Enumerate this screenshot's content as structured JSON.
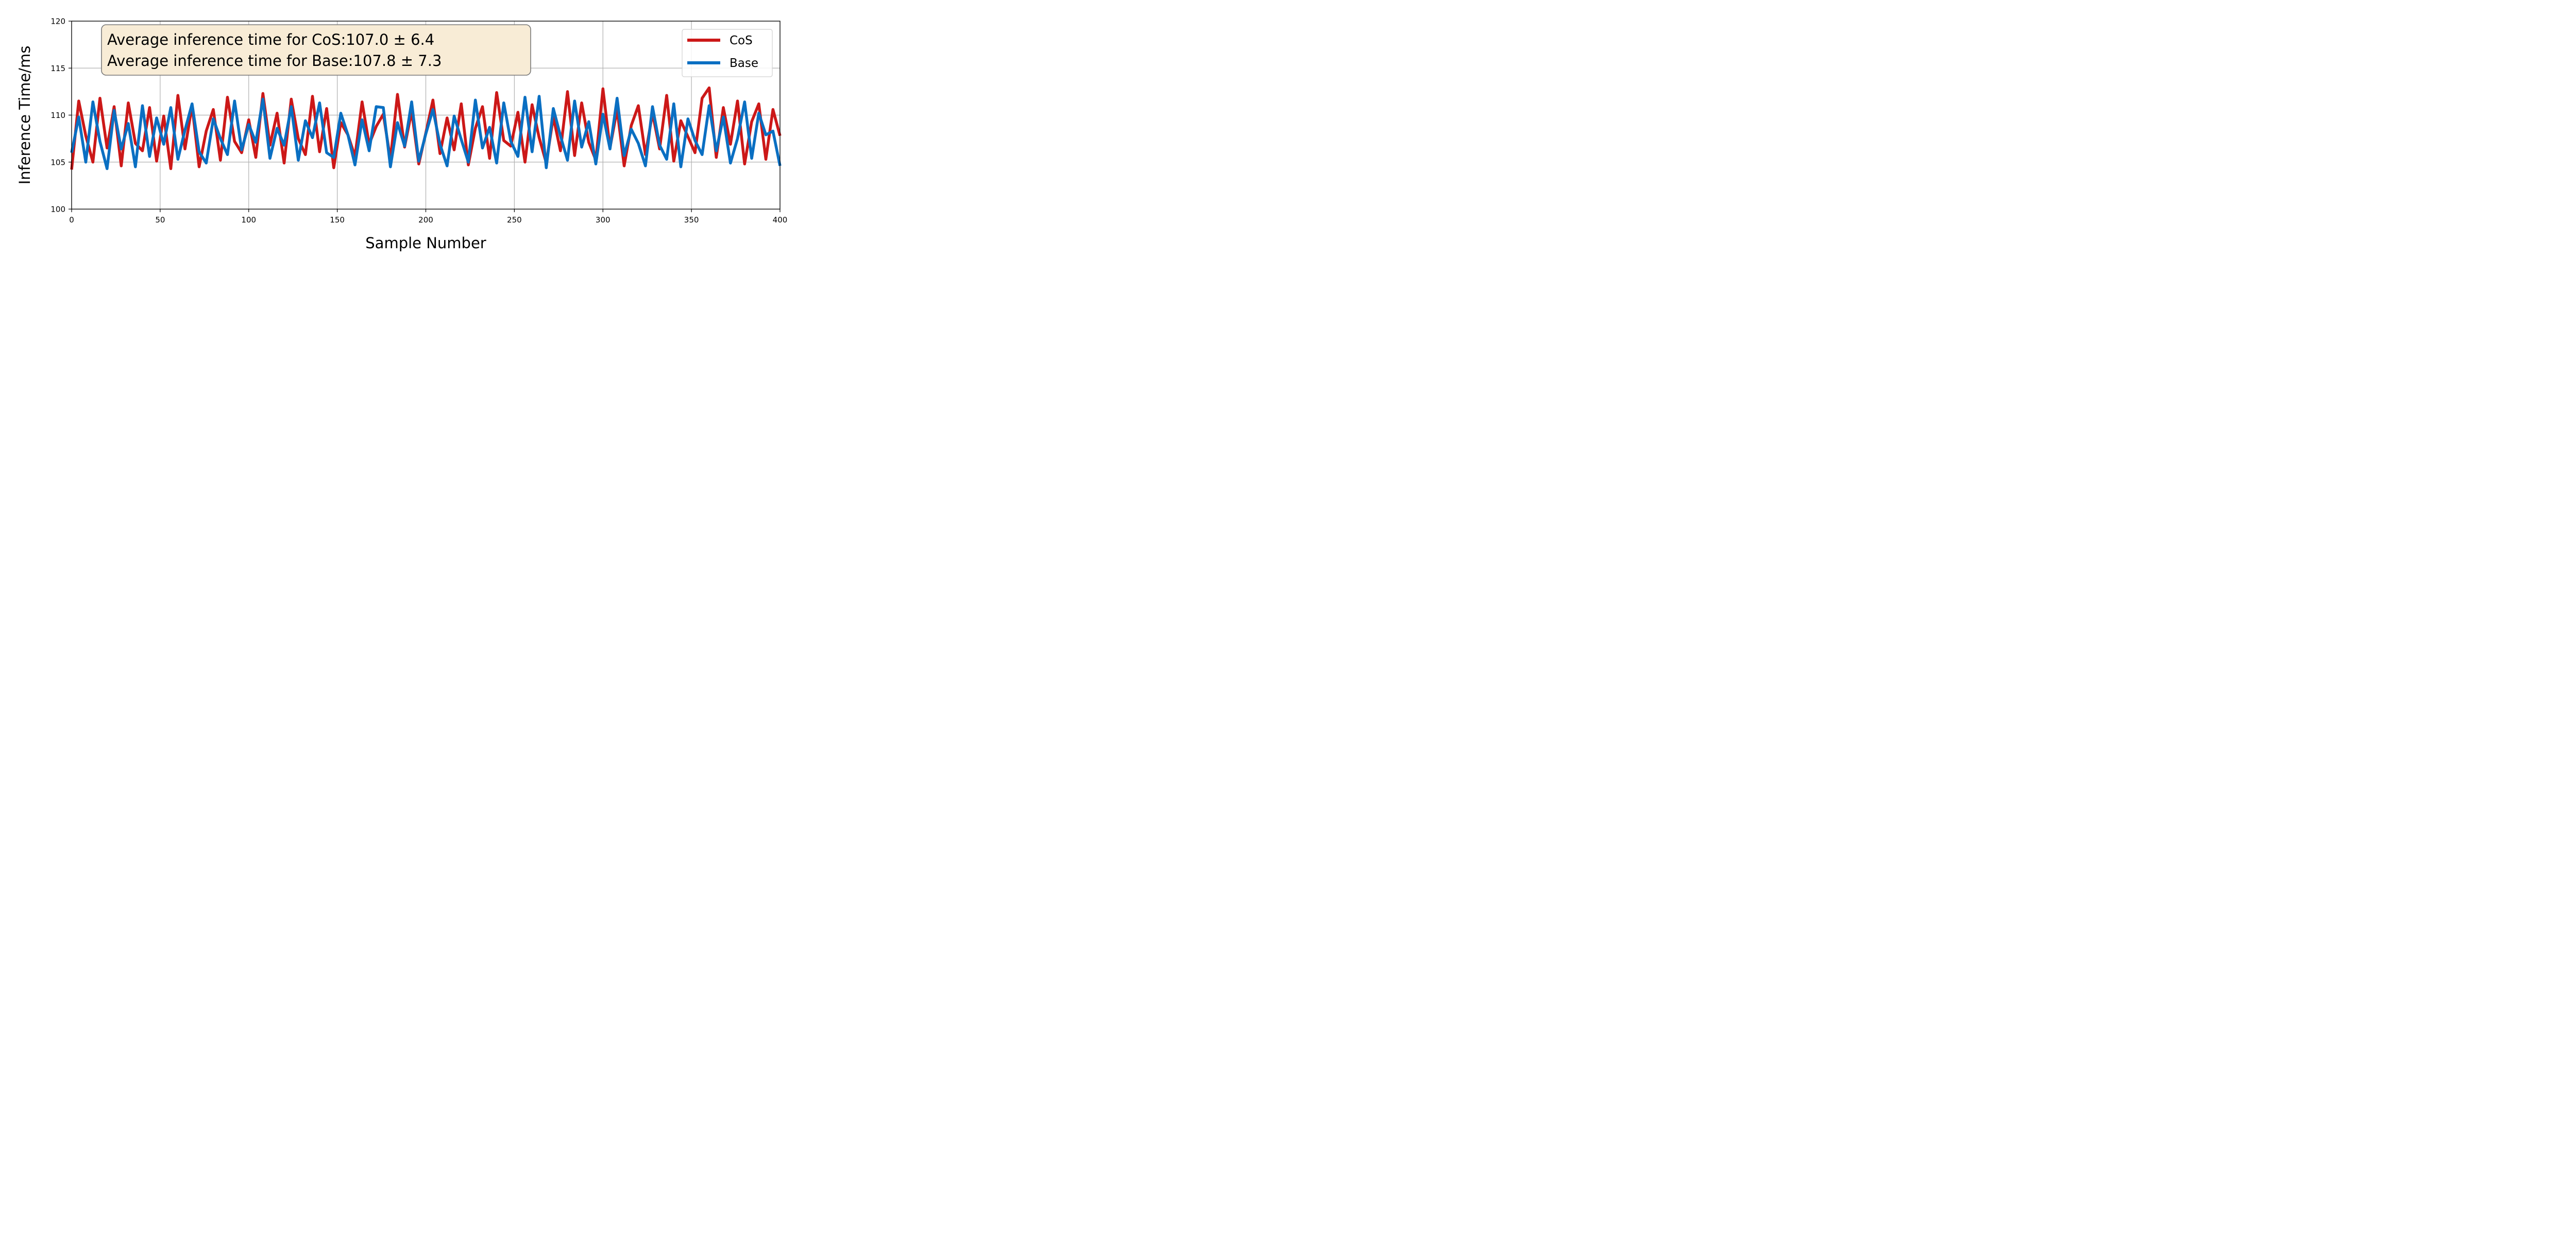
{
  "chart_data": {
    "type": "line",
    "xlabel": "Sample Number",
    "ylabel": "Inference Time/ms",
    "xlim": [
      0,
      400
    ],
    "ylim": [
      100,
      120
    ],
    "xticks": [
      0,
      50,
      100,
      150,
      200,
      250,
      300,
      350,
      400
    ],
    "yticks": [
      100,
      105,
      110,
      115,
      120
    ],
    "grid": true,
    "legend_position": "top-right",
    "annotation": {
      "lines": [
        "Average inference time for CoS:107.0 ± 6.4",
        "Average inference time for Base:107.8 ± 7.3"
      ],
      "background": "#f8ecd6",
      "border": "#7a7a7a"
    },
    "series": [
      {
        "name": "CoS",
        "color": "#cc1818",
        "x": [
          0,
          4,
          8,
          12,
          16,
          20,
          24,
          28,
          32,
          36,
          40,
          44,
          48,
          52,
          56,
          60,
          64,
          68,
          72,
          76,
          80,
          84,
          88,
          92,
          96,
          100,
          104,
          108,
          112,
          116,
          120,
          124,
          128,
          132,
          136,
          140,
          144,
          148,
          152,
          156,
          160,
          164,
          168,
          172,
          176,
          180,
          184,
          188,
          192,
          196,
          200,
          204,
          208,
          212,
          216,
          220,
          224,
          228,
          232,
          236,
          240,
          244,
          248,
          252,
          256,
          260,
          264,
          268,
          272,
          276,
          280,
          284,
          288,
          292,
          296,
          300,
          304,
          308,
          312,
          316,
          320,
          324,
          328,
          332,
          336,
          340,
          344,
          348,
          352,
          356,
          360,
          364,
          368,
          372,
          376,
          380,
          384,
          388,
          392,
          396,
          400
        ],
        "values": [
          104.2,
          111.5,
          107.8,
          105.0,
          111.8,
          106.5,
          110.9,
          104.6,
          111.3,
          107.0,
          106.2,
          110.8,
          105.1,
          109.9,
          104.3,
          112.1,
          106.4,
          111.0,
          104.5,
          108.3,
          110.6,
          105.2,
          111.9,
          107.2,
          106.0,
          109.5,
          105.5,
          112.3,
          106.8,
          110.2,
          104.9,
          111.7,
          107.5,
          105.8,
          112.0,
          106.1,
          110.7,
          104.4,
          109.2,
          107.9,
          105.6,
          111.4,
          106.9,
          108.8,
          110.1,
          105.3,
          112.2,
          106.6,
          110.4,
          104.8,
          108.1,
          111.6,
          105.9,
          109.7,
          106.3,
          111.2,
          104.7,
          108.6,
          110.9,
          105.4,
          112.4,
          107.3,
          106.7,
          110.3,
          105.0,
          111.1,
          107.6,
          104.9,
          109.8,
          106.2,
          112.5,
          105.7,
          111.3,
          107.1,
          105.2,
          112.8,
          106.5,
          110.6,
          104.6,
          108.9,
          111.0,
          105.8,
          110.2,
          106.4,
          112.1,
          105.1,
          109.4,
          107.7,
          106.0,
          111.8,
          112.9,
          105.5,
          110.8,
          106.9,
          111.5,
          104.8,
          109.3,
          111.2,
          105.3,
          110.6,
          107.8
        ]
      },
      {
        "name": "Base",
        "color": "#0a6fc2",
        "x": [
          0,
          4,
          8,
          12,
          16,
          20,
          24,
          28,
          32,
          36,
          40,
          44,
          48,
          52,
          56,
          60,
          64,
          68,
          72,
          76,
          80,
          84,
          88,
          92,
          96,
          100,
          104,
          108,
          112,
          116,
          120,
          124,
          128,
          132,
          136,
          140,
          144,
          148,
          152,
          156,
          160,
          164,
          168,
          172,
          176,
          180,
          184,
          188,
          192,
          196,
          200,
          204,
          208,
          212,
          216,
          220,
          224,
          228,
          232,
          236,
          240,
          244,
          248,
          252,
          256,
          260,
          264,
          268,
          272,
          276,
          280,
          284,
          288,
          292,
          296,
          300,
          304,
          308,
          312,
          316,
          320,
          324,
          328,
          332,
          336,
          340,
          344,
          348,
          352,
          356,
          360,
          364,
          368,
          372,
          376,
          380,
          384,
          388,
          392,
          396,
          400
        ],
        "values": [
          106.0,
          109.8,
          105.0,
          111.4,
          107.2,
          104.3,
          110.5,
          106.4,
          109.1,
          104.5,
          111.0,
          105.6,
          109.7,
          106.9,
          110.8,
          105.3,
          108.4,
          111.2,
          106.1,
          104.9,
          109.6,
          107.5,
          105.8,
          111.5,
          106.3,
          109.0,
          107.1,
          111.7,
          105.4,
          108.6,
          106.8,
          110.9,
          105.2,
          109.4,
          107.6,
          111.3,
          106.0,
          105.5,
          110.2,
          107.9,
          104.7,
          109.5,
          106.2,
          110.9,
          110.8,
          104.5,
          109.2,
          106.7,
          111.4,
          105.1,
          108.0,
          110.6,
          106.9,
          104.6,
          109.9,
          107.4,
          105.0,
          111.6,
          106.5,
          108.7,
          104.9,
          111.3,
          107.2,
          105.6,
          111.9,
          106.1,
          112.0,
          104.4,
          110.7,
          107.8,
          105.2,
          111.5,
          106.6,
          109.3,
          104.8,
          110.1,
          106.4,
          111.8,
          105.7,
          108.5,
          107.0,
          104.6,
          110.9,
          106.8,
          105.3,
          111.2,
          104.5,
          109.6,
          107.3,
          105.8,
          111.0,
          106.2,
          109.8,
          104.9,
          107.5,
          111.4,
          105.4,
          110.2,
          107.9,
          108.3,
          104.6
        ]
      }
    ]
  }
}
